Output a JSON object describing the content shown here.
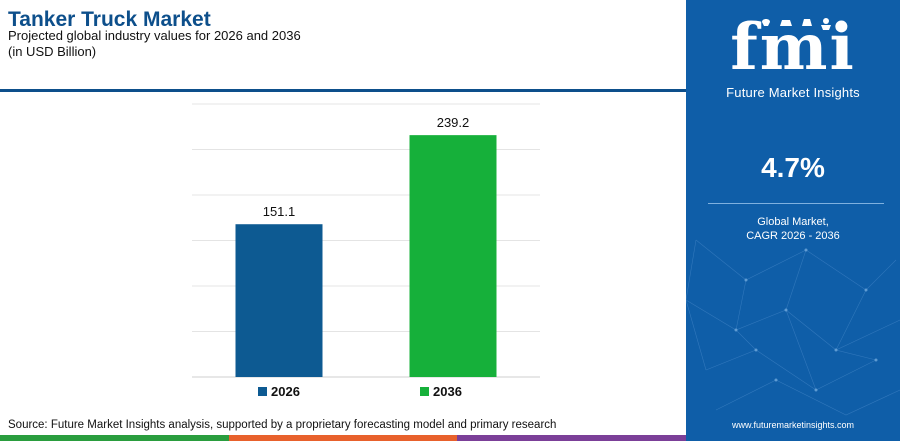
{
  "header": {
    "title": "Tanker Truck Market",
    "subtitle": "Projected global industry values for 2026 and 2036",
    "units": "(in USD Billion)"
  },
  "chart_data": {
    "type": "bar",
    "categories": [
      "2026",
      "2036"
    ],
    "values": [
      151.1,
      239.2
    ],
    "value_labels": [
      "151.1",
      "239.2"
    ],
    "colors": [
      "#0d5a92",
      "#16b03a"
    ],
    "ylim": [
      0,
      270
    ],
    "grid": true,
    "legend": "bottom",
    "xlabel": "",
    "ylabel": ""
  },
  "footer": {
    "source": "Source: Future Market Insights analysis, supported by a proprietary forecasting model and primary research",
    "strip_colors": [
      "#2a9d3e",
      "#e8612c",
      "#7b3f98"
    ]
  },
  "side_panel": {
    "logo_text": "fmi",
    "logo_tagline": "Future Market Insights",
    "cagr_value": "4.7%",
    "cagr_label_line1": "Global Market,",
    "cagr_label_line2": "CAGR 2026 - 2036",
    "website": "www.futuremarketinsights.com",
    "background_color": "#0f5ea8"
  }
}
